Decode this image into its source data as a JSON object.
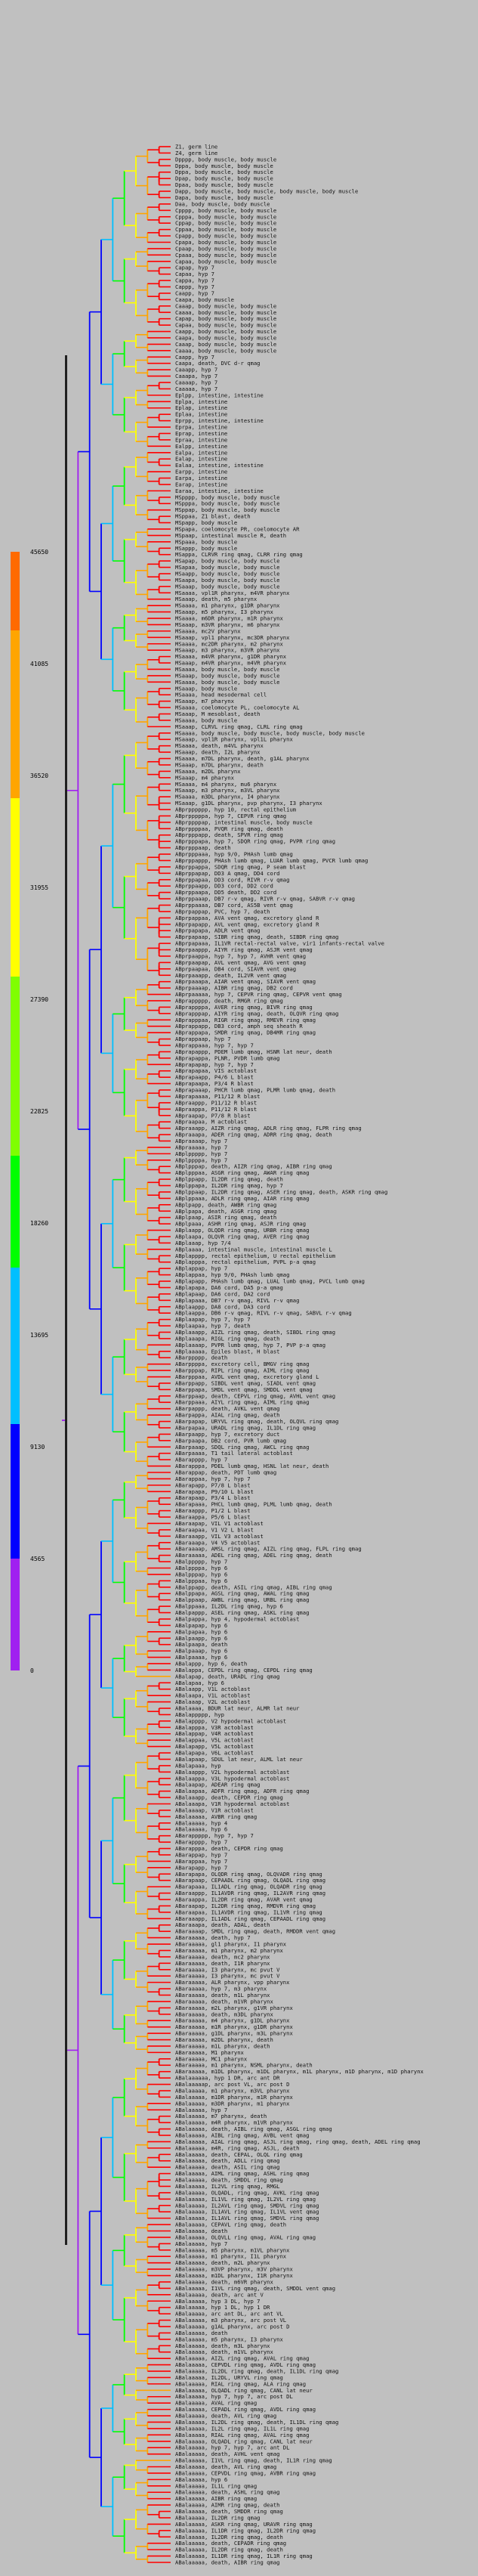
{
  "colors": {
    "background": "#c0c0c0",
    "scale": [
      "#a020f0",
      "#0000ff",
      "#00bfff",
      "#00ff00",
      "#ffff00",
      "#ffa500",
      "#ff0000"
    ]
  },
  "colorbar": {
    "ticks": [
      "45650",
      "41085",
      "36520",
      "31955",
      "27390",
      "22825",
      "18260",
      "13695",
      "9130",
      "4565",
      "0"
    ]
  },
  "leaves": [
    "Z1, germ line",
    "Z4, germ line",
    "Dpppp, body muscle, body muscle",
    "Dppa, body muscle, body muscle",
    "Dppa, body muscle, body muscle",
    "Dpap, body muscle, body muscle",
    "Dpaa, body muscle, body muscle",
    "Dapp, body muscle, body muscle, body muscle, body muscle",
    "Dapa, body muscle, body muscle",
    "Daa, body muscle, body muscle",
    "Cpppp, body muscle, body muscle",
    "Cpppa, body muscle, body muscle",
    "Cppap, body muscle, body muscle",
    "Cppaa, body muscle, body muscle",
    "Cpapp, body muscle, body muscle",
    "Cpapa, body muscle, body muscle",
    "Cpaap, body muscle, body muscle",
    "Cpaaa, body muscle, body muscle",
    "Capaa, body muscle, body muscle",
    "Capap, hyp 7",
    "Capaa, hyp 7",
    "Cappa, hyp 7",
    "Cappp, hyp 7",
    "Caapp, hyp 7",
    "Caapa, body muscle",
    "Caaap, body muscle, body muscle",
    "Caaaa, body muscle, body muscle",
    "Capap, body muscle, body muscle",
    "Capaa, body muscle, body muscle",
    "Caapp, body muscle, body muscle",
    "Caapa, body muscle, body muscle",
    "Caaap, body muscle, body muscle",
    "Caaaa, body muscle, body muscle",
    "Caapp, hyp 7",
    "Caapa, death, DVC d-r qmag",
    "Caaapp, hyp 7",
    "Caaapa, hyp 7",
    "Caaaap, hyp 7",
    "Caaaaa, hyp 7",
    "Eplpp, intestine, intestine",
    "Eplpa, intestine",
    "Eplap, intestine",
    "Eplaa, intestine",
    "Eprpp, intestine, intestine",
    "Eprpa, intestine",
    "Eprap, intestine",
    "Epraa, intestine",
    "Ealpp, intestine",
    "Ealpa, intestine",
    "Ealap, intestine",
    "Ealaa, intestine, intestine",
    "Earpp, intestine",
    "Earpa, intestine",
    "Earap, intestine",
    "Earaa, intestine, intestine",
    "MSpppp, body muscle, body muscle",
    "MSpppa, body muscle, body muscle",
    "MSppap, body muscle, body muscle",
    "MSppaa, Z1 blast, death",
    "MSpapp, body muscle",
    "MSpapa, coelomocyte PR, coelomocyte AR",
    "MSpaap, intestinal muscle R, death",
    "MSpaaa, body muscle",
    "MSappp, body muscle",
    "MSappa, CLRVR ring qmag, CLRR ring qmag",
    "MSapap, body muscle, body muscle",
    "MSapaa, body muscle, body muscle",
    "MSaapp, body muscle, body muscle",
    "MSaapa, body muscle, body muscle",
    "MSaaap, body muscle, body muscle",
    "MSaaaa, vpl1R pharynx, m4VR pharynx",
    "MSaaap, death, m5 pharynx",
    "MSaaaa, m1 pharynx, g1DR pharynx",
    "MSaaap, m5 pharynx, I3 pharynx",
    "MSaaaa, m6DR pharynx, m1R pharynx",
    "MSaaap, m3VR pharynx, m6 pharynx",
    "MSaaaa, mc2V pharynx",
    "MSaaap, vpl1 pharynx, mc3DR pharynx",
    "MSaaaa, mc2DR pharynx, m2 pharynx",
    "MSaaap, m3 pharynx, m3VR pharynx",
    "MSaaaa, m4VR pharynx, g1DR pharynx",
    "MSaaap, m4VR pharynx, m4VR pharynx",
    "MSaaaa, body muscle, body muscle",
    "MSaaap, body muscle, body muscle",
    "MSaaaa, body muscle, body muscle",
    "MSaaap, body muscle",
    "MSaaaa, head mesodermal cell",
    "MSaaap, m7 pharynx",
    "MSaaaa, coelomocyte PL, coelomocyte AL",
    "MSaaap, M mesoblast, death",
    "MSaaaa, body muscle",
    "MSaaap, CLRVL ring qmag, CLRL ring qmag",
    "MSaaaa, body muscle, body muscle, body muscle, body muscle",
    "MSaaap, vpl1R pharynx, vpl1L pharynx",
    "MSaaaa, death, m4VL pharynx",
    "MSaaap, death, I2L pharynx",
    "MSaaaa, m7DL pharynx, death, g1AL pharynx",
    "MSaaap, m7DL pharynx, death",
    "MSaaaa, m2DL pharynx",
    "MSaaap, m4 pharynx",
    "MSaaaa, m4 pharynx, mu6 pharynx",
    "MSaaap, m3 pharynx, m3VL pharynx",
    "MSaaaa, m3DL pharynx, I4 pharynx",
    "MSaaap, g1DL pharynx, pvp pharynx, I3 pharynx",
    "ABprpppppp, hyp 10, rectal epithelium",
    "ABprpppppa, hyp 7, CEPVR ring qmag",
    "ABprppppap, intestinal muscle, body muscle",
    "ABprppppaa, PVQR ring qmag, death",
    "ABprpppapp, death, SPVR ring qmag",
    "ABprpppapa, hyp 7, SDQR ring qmag, PVPR ring qmag",
    "ABprpppaap, death",
    "ABprpppaaa, hyp 9/0, PHAsh lumb qmag",
    "ABprppappp, PHAsh lumb qmag, LUAR lumb qmag, PVCR lumb qmag",
    "ABprppappa, SDQR ring qmag, P seam blast",
    "ABprppapap, DD3 A qmag, DD4 cord",
    "ABprppapaa, DD3 cord, RIVR r-v qmag",
    "ABprppaapp, DD3 cord, DD2 cord",
    "ABprppaapa, DD5 death, DD2 cord",
    "ABprppaaap, DB7 r-v qmag, RIVR r-v qmag, SABVR r-v qmag",
    "ABprppaaaa, DB7 cord, AS5B vent qmag",
    "ABprpappap, PVC, hyp 7, death",
    "ABprpappaa, AVA vent qmag, excretory gland R",
    "ABprpapapp, AVL vent qmag, excretory gland R",
    "ABprpapapa, ADLR vent qmag",
    "ABprpapaap, SIBR ring qmag, death, SIBDR ring qmag",
    "ABprpapaaa, IL1VR rectal-rectal valve, vir1 infants-rectal valve",
    "ABprpaappp, AIYR ring qmag, ASJR vent qmag",
    "ABprpaappa, hyp 7, hyp 7, AVHR vent qmag",
    "ABprpaapap, AVL vent qmag, AVG vent qmag",
    "ABprpaapaa, DB4 cord, SIAVR vent qmag",
    "ABprpaaapp, death, IL2VR vent qmag",
    "ABprpaaapa, AIAR vent qmag, SIAVR vent qmag",
    "ABprpaaaap, AIBR ring qmag, DB2 cord",
    "ABprpaaaaa, hyp 7, CEPVR ring qmag, CEPVR vent qmag",
    "ABprappppp, death, RMGR ring qmag",
    "ABprappppa, AVER ring qmag, BIVR ring qmag",
    "ABprapppap, AIYR ring qmag, death, OLQVR ring qmag",
    "ABprapppaa, RIGR ring qmag, RMEVR ring qmag",
    "ABprappapp, DB3 cord, amph seq sheath R",
    "ABprappapa, SMDR ring qmag, DB4MR ring qmag",
    "ABprappaap, hyp 7",
    "ABprappaaa, hyp 7, hyp 7",
    "ABprapappp, PDEM lumb qmag, HSNR lat neur, death",
    "ABprapappa, PLNR, PVDR lumb qmag",
    "ABprapapap, hyp 7, hyp 7",
    "ABprapapaa, VIS actoblast",
    "ABprapaapp, P4/6 L blast",
    "ABprapaapa, P3/4 R blast",
    "ABprapaaap, PHCR lumb qmag, PLMR lumb qmag, death",
    "ABprapaaaa, P11/12 R blast",
    "ABpraappp, P11/12 R blast",
    "ABpraappa, P11/12 R blast",
    "ABpraapap, P7/8 R blast",
    "ABpraapaa, M actoblast",
    "ABpraaapp, AIZR ring qmag, ADLR ring qmag, FLPR ring qmag",
    "ABpraaapa, ADER ring qmag, ADRR ring qmag, death",
    "ABpraaaap, hyp 7",
    "ABpraaaaa, hyp 7",
    "ABplppppp, hyp 7",
    "ABplppppa, hyp 7",
    "ABplpppap, death, AIZR ring qmag, AIBR ring qmag",
    "ABplpppaa, ASGR ring qmag, AWAR ring qmag",
    "ABplppapp, IL2DR ring qmag, death",
    "ABplppapa, IL2DR ring qmag, hyp 7",
    "ABplppaap, IL2DR ring qmag, ASER ring qmag, death, ASKR ring qmag",
    "ABplppaaa, ADLR ring qmag, AIAR ring qmag",
    "ABplpapp, death, AWBR ring qmag",
    "ABplpapa, death, ASGR ring qmag",
    "ABplpaap, ASIR ring qmag, death",
    "ABplpaaa, ASHR ring qmag, ASJR ring qmag",
    "ABplaapp, OLQDR ring qmag, URBR ring qmag",
    "ABplaapa, OLQVR ring qmag, AVER ring qmag",
    "ABplaaap, hyp 7/4",
    "ABplaaaa, intestinal muscle, intestinal muscle L",
    "ABplapppp, rectal epithelium, U rectal epithelium",
    "ABplapppa, rectal epithelium, PVPL p-a qmag",
    "ABplappap, hyp 7",
    "ABplappaa, hyp 9/0, PHAsh lumb qmag",
    "ABplapapp, PHAsh lumb qmag, LUAL lumb qmag, PVCL lumb qmag",
    "ABplapapa, DA6 cord, DA5 p-a qmag",
    "ABplapaap, DA6 cord, DA2 cord",
    "ABplapaaa, DB7 r-v qmag, RIVL r-v qmag",
    "ABplaappp, DA8 cord, DA3 cord",
    "ABplaappa, DB6 r-v qmag, RIVL r-v qmag, SABVL r-v qmag",
    "ABplaapap, hyp 7, hyp 7",
    "ABplaapaa, hyp 7, death",
    "ABplaaapp, AIZL ring qmag, death, SIBDL ring qmag",
    "ABplaaapa, RIGL ring qmag, death",
    "ABplaaaap, PVPR lumb qmag, hyp 7, PVP p-a qmag",
    "ABplaaaaa, Epiles blast, H blast",
    "ABarppppp, death",
    "ABarppppa, excretory cell, BMGV ring qmag",
    "ABarpppap, RIPL ring qmag, AIML ring qmag",
    "ABarpppaa, AVDL vent qmag, excretory gland L",
    "ABarppapp, SIBDL vent qmag, SIADL vent qmag",
    "ABarppapa, SMDL vent qmag, SMDDL vent qmag",
    "ABarppaap, death, CEPVL ring qmag, AVHL vent qmag",
    "ABarppaaa, AIYL ring qmag, AIML ring qmag",
    "ABarpappp, death, AVKL vent qmag",
    "ABarpappa, AIAL ring qmag, death",
    "ABarpapap, URYVL ring qmag, death, OLQVL ring qmag",
    "ABarpapaa, URADL ring qmag, IL1DL ring qmag",
    "ABarpaapp, hyp 7, excretory duct",
    "ABarpaapa, DB2 cord, PVR lumb qmag",
    "ABarpaaap, SDQL ring qmag, AWCL ring qmag",
    "ABarpaaaa, T1 tail lateral actoblast",
    "ABarapppp, hyp 7",
    "ABarapppa, PDEL lumb qmag, HSNL lat neur, death",
    "ABarappap, death, PDT lumb qmag",
    "ABarappaa, hyp 7, hyp 7",
    "ABarapapp, P7/8 L blast",
    "ABarapapa, P9/10 L blast",
    "ABarapaap, P3/4 L blast",
    "ABarapaaa, PHCL lumb qmag, PLML lumb qmag, death",
    "ABaraappp, P1/2 L blast",
    "ABaraappa, P5/6 L blast",
    "ABaraapap, VIL V1 actoblast",
    "ABaraapaa, V1 V2 L blast",
    "ABaraaapp, VIL V3 actoblast",
    "ABaraaapa, V4 V5 actoblast",
    "ABaraaaap, AMSL ring qmag, AIZL ring qmag, FLPL ring qmag",
    "ABaraaaaa, ADEL ring qmag, ADEL ring qmag, death",
    "ABalppppp, hyp 7",
    "ABalppppa, hyp 6",
    "ABalpppap, hyp 6",
    "ABalpppaa, hyp 6",
    "ABalppapp, death, ASIL ring qmag, AIBL ring qmag",
    "ABalppapa, AGSL ring qmag, AWAL ring qmag",
    "ABalppaap, AWBL ring qmag, URBL ring qmag",
    "ABalppaaa, IL2DL ring qmag, hyp 6",
    "ABalpappp, ASEL ring qmag, ASKL ring qmag",
    "ABalpappa, hyp 4, hypodermal actoblast",
    "ABalpapap, hyp 6",
    "ABalpapaa, hyp 6",
    "ABalpaapp, hyp 6",
    "ABalpaapa, death",
    "ABalpaaap, hyp 6",
    "ABalpaaaa, hyp 6",
    "ABalappp, hyp 6, death",
    "ABalappa, CEPDL ring qmag, CEPDL ring qmag",
    "ABalapap, death, URADL ring qmag",
    "ABalapaa, hyp 6",
    "ABalaapp, V1L actoblast",
    "ABalaapa, V1L actoblast",
    "ABalaaap, V2L actoblast",
    "ABalaaaa, BDUR lat neur, ALMR lat neur",
    "ABalappppp, hyp",
    "ABalapppp, V2 hypodermal actoblast",
    "ABalapppa, V3R actoblast",
    "ABalappap, V4R actoblast",
    "ABalappaa, V5L actoblast",
    "ABalapapp, V5L actoblast",
    "ABalapapa, V6L actoblast",
    "ABalapaap, SDUL lat neur, ALML lat neur",
    "ABalapaaa, hyp",
    "ABalaappp, V2L hypodermal actoblast",
    "ABalaappa, V3L hypodermal actoblast",
    "ABalaapap, ADEAR ring qmag",
    "ABalaapaa, ADFR ring qmag, ADFR ring qmag",
    "ABalaaapp, death, CEPDR ring qmag",
    "ABalaaapa, V1R hypodermal actoblast",
    "ABalaaaap, V1R actoblast",
    "ABalaaaaa, AVBR ring qmag",
    "ABalaaaaa, hyp 4",
    "ABalaaaaa, hyp 6",
    "ABarappppp, hyp 7, hyp 7",
    "ABarapppp, hyp 7",
    "ABarapppa, death, CEPDR ring qmag",
    "ABarappap, hyp 7",
    "ABarappaa, hyp 7",
    "ABarapapp, hyp 7",
    "ABarapapa, OLQDR ring qmag, OLQVADR ring qmag",
    "ABarapaap, CEPAADL ring qmag, OLQADL ring qmag",
    "ABarapaaa, IL1ADL ring qmag, OLQADR ring qmag",
    "ABaraappp, IL1AVDR ring qmag, IL2AVR ring qmag",
    "ABaraappa, IL2DR ring qmag, AVAR vent qmag",
    "ABaraapap, IL2DR ring qmag, RMDVR ring qmag",
    "ABaraapaa, IL1AVDR ring qmag, IL1VR ring qmag",
    "ABaraaapp, IL1ADL ring qmag, CEPAADL ring qmag",
    "ABaraaapa, death, ADAL, death",
    "ABaraaaap, SMDL ring qmag, death, RMDDR vent qmag",
    "ABaraaaaa, death, hyp 7",
    "ABaraaaaa, gl1 pharynx, I1 pharynx",
    "ABaraaaaa, m1 pharynx, m2 pharynx",
    "ABaraaaaa, death, mc2 pharynx",
    "ABaraaaaa, death, I1R pharynx",
    "ABaraaaaa, I3 pharynx, mc pvut V",
    "ABaraaaaa, I3 pharynx, mc pvut V",
    "ABaraaaaa, ALR pharynx, vpp pharynx",
    "ABaraaaaa, hyp 7, m3 pharynx",
    "ABaraaaaa, death, m1L pharynx",
    "ABaraaaaa, death, m1VR pharynx",
    "ABaraaaaa, m2L pharynx, g1VR pharynx",
    "ABaraaaaa, death, m3DL pharynx",
    "ABaraaaaa, m4 pharynx, g1DL pharynx",
    "ABaraaaaa, m1R pharynx, g1DR pharynx",
    "ABaraaaaa, g1DL pharynx, m3L pharynx",
    "ABaraaaaa, m2DL pharynx, death",
    "ABaraaaaa, m1L pharynx, death",
    "ABaraaaaa, M1 pharynx",
    "ABaraaaaa, MC1 pharynx",
    "ABaraaaaa, m1 pharynx, NSML pharynx, death",
    "ABaraaaaa, m1DL pharynx, m1DL pharynx, m1L pharynx, m1D pharynx, m1D pharynx",
    "ABalaaaaaa, hyp 1 DR, arc ant DR",
    "ABalaaaaap, arc post VL, arc post D",
    "ABalaaaaa, m1 pharynx, m3VL pharynx",
    "ABalaaaaa, m1DR pharynx, m1R pharynx",
    "ABalaaaaa, m3DR pharynx, m1 pharynx",
    "ABalaaaaa, hyp 7",
    "ABalaaaaa, m7 pharynx, death",
    "ABalaaaaa, m4R pharynx, m1VR pharynx",
    "ABalaaaaa, death, AIBL ring qmag, ASGL ring qmag",
    "ABalaaaaa, AIBL ring qmag, AVBL vent qmag",
    "ABalaaaaa, AIAL ring qmag, ASJL ring qmag, ring qmag, death, ADEL ring qmag",
    "ABalaaaaa, m4R, ring qmag, ASJL, death",
    "ABalaaaaa, death, CEPAL, OLQL ring qmag",
    "ABalaaaaa, death, ADLL ring qmag",
    "ABalaaaaa, death, ASIL ring qmag",
    "ABalaaaaa, AIML ring qmag, ASHL ring qmag",
    "ABalaaaaa, death, SMDDL ring qmag",
    "ABalaaaaa, IL2VL ring qmag, RMGL",
    "ABalaaaaa, OLQADL, ring qmag, AVKL ring qmag",
    "ABalaaaaa, IL1VL ring qmag, IL2VL ring qmag",
    "ABalaaaaa, IL2AVL ring qmag, SMDVL ring qmag",
    "ABalaaaaa, IL1AVL ring qmag, IL1VL vent qmag",
    "ABalaaaaa, IL1AVL ring qmag, SMDVL ring qmag",
    "ABalaaaaa, CEPAVL ring qmag, death",
    "ABalaaaaa, death",
    "ABalaaaaa, OLQVLL ring qmag, AVAL ring qmag",
    "ABalaaaaa, hyp 7",
    "ABalaaaaa, m5 pharynx, m1VL pharynx",
    "ABalaaaaa, m1 pharynx, I1L pharynx",
    "ABalaaaaa, death, m2L pharynx",
    "ABalaaaaa, m3VP pharynx, m3V pharynx",
    "ABalaaaaa, m1DL pharynx, I1R pharynx",
    "ABalaaaaa, death, m6VR pharynx",
    "ABalaaaaa, I1VL ring qmag, death, SMDDL vent qmag",
    "ABalaaaaa, death, arc ant V",
    "ABalaaaaa, hyp 3 DL, hyp 7",
    "ABalaaaaa, hyp 1 DL, hyp 1 DR",
    "ABalaaaaa, arc ant DL, arc ant VL",
    "ABalaaaaa, m3 pharynx, arc post VL",
    "ABalaaaaa, g1AL pharynx, arc post D",
    "ABalaaaaa, death",
    "ABalaaaaa, m5 pharynx, I3 pharynx",
    "ABalaaaaa, death, m3L pharynx",
    "ABalaaaaa, death, m1VL pharynx",
    "ABalaaaaa, AIZL ring qmag, AVAL ring qmag",
    "ABalaaaaa, CEPVDL ring qmag, AVDL ring qmag",
    "ABalaaaaa, IL2DL ring qmag, death, IL1DL ring qmag",
    "ABalaaaaa, IL2DL, URYVL ring qmag",
    "ABalaaaaa, RIAL ring qmag, ALA ring qmag",
    "ABalaaaaa, OLQADL ring qmag, CANL lat neur",
    "ABalaaaaa, hyp 7, hyp 7, arc post DL",
    "ABalaaaaa, AVAL ring qmag",
    "ABalaaaaa, CEPADL ring qmag, AVDL ring qmag",
    "ABalaaaaa, death, AVL ring qmag",
    "ABalaaaaa, IL2DL ring qmag, death, IL1DL ring qmag",
    "ABalaaaaa, IL2L ring qmag, IL1L ring qmag",
    "ABalaaaaa, RIAL ring qmag, AVAL ring qmag",
    "ABalaaaaa, OLQADL ring qmag, CANL lat neur",
    "ABalaaaaa, hyp 7, hyp 7, arc ant DL",
    "ABalaaaaa, death, AVHL vent qmag",
    "ABalaaaaa, I1VL ring qmag, death, IL1R ring qmag",
    "ABalaaaaa, death, AVL ring qmag",
    "ABalaaaaa, CEPVDL ring qmag, AVBR ring qmag",
    "ABalaaaaa, hyp 6",
    "ABalaaaaa, IL1L ring qmag",
    "ABalaaaaa, death, ASHL ring qmag",
    "ABalaaaaa, AIBR ring qmag",
    "ABalaaaaa, AIMR ring qmag, death",
    "ABalaaaaa, death, SMDDR ring qmag",
    "ABalaaaaa, IL2DR ring qmag",
    "ABalaaaaa, ASKR ring qmag, URAVR ring qmag",
    "ABalaaaaa, IL1DR ring qmag, IL2DR ring qmag",
    "ABalaaaaa, IL2DR ring qmag, death",
    "ABalaaaaa, death, CEPADR ring qmag",
    "ABalaaaaa, IL2DR ring qmag, death",
    "ABalaaaaa, IL1DR ring qmag, IL1R ring qmag",
    "ABalaaaaa, death, AIBR ring qmag"
  ]
}
